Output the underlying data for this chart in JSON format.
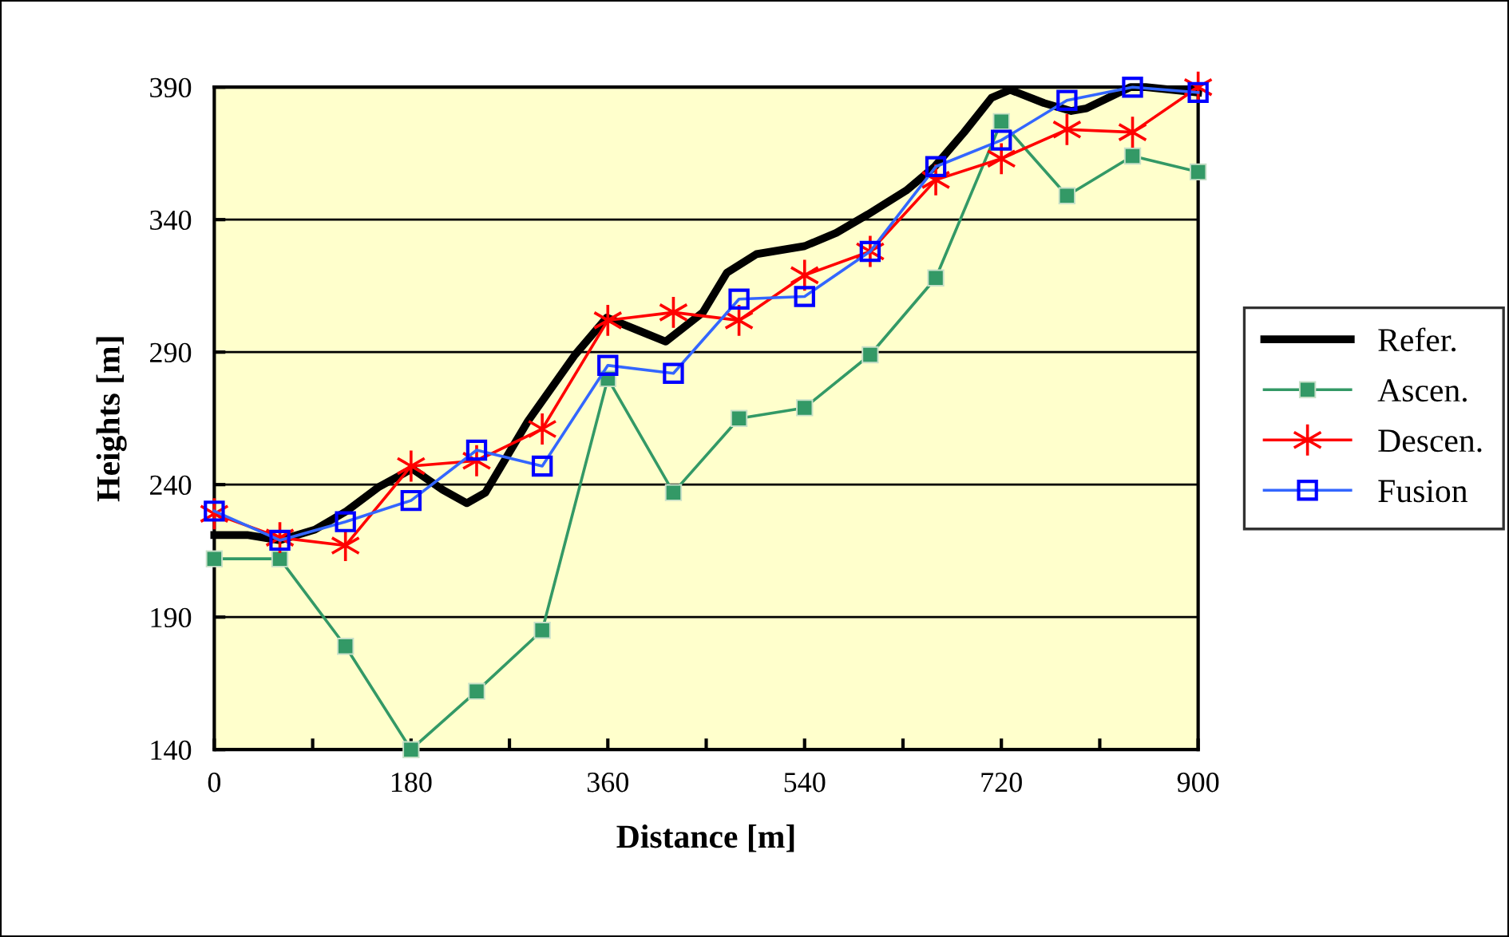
{
  "chart_data": {
    "type": "line",
    "xlabel": "Distance [m]",
    "ylabel": "Heights [m]",
    "xlim": [
      0,
      900
    ],
    "xticks": [
      0,
      {
        "value": 90,
        "label": null
      },
      180,
      {
        "value": 270,
        "label": null
      },
      360,
      {
        "value": 450,
        "label": null
      },
      540,
      {
        "value": 630,
        "label": null
      },
      720,
      {
        "value": 810,
        "label": null
      },
      900
    ],
    "ylim": [
      140,
      390
    ],
    "yticks": [
      140,
      190,
      240,
      290,
      340,
      390
    ],
    "grid": "y",
    "legend": "right",
    "series": [
      {
        "name": "Refer.",
        "color": "#000000",
        "marker": "none",
        "x": [
          0,
          30,
          60,
          92,
          121,
          150,
          181,
          209,
          231,
          248,
          287,
          330,
          359,
          389,
          413,
          447,
          469,
          496,
          540,
          569,
          598,
          633,
          659,
          686,
          711,
          728,
          759,
          784,
          798,
          838,
          852,
          900
        ],
        "values": [
          221,
          221,
          219,
          223,
          230,
          239,
          246,
          238,
          233,
          237,
          264,
          289,
          303,
          298,
          294,
          305,
          320,
          327,
          330,
          335,
          342,
          351,
          360,
          373,
          386,
          389,
          384,
          381,
          382,
          390,
          390,
          388
        ]
      },
      {
        "name": "Ascen.",
        "color": "#339966",
        "marker": "square",
        "x": [
          0,
          60,
          120,
          180,
          240,
          300,
          360,
          420,
          480,
          540,
          600,
          660,
          720,
          780,
          840,
          900
        ],
        "values": [
          212,
          212,
          179,
          140,
          162,
          185,
          280,
          237,
          265,
          269,
          289,
          318,
          377,
          349,
          364,
          358
        ]
      },
      {
        "name": "Descen.",
        "color": "#ff0000",
        "marker": "cross",
        "x": [
          0,
          60,
          120,
          180,
          240,
          300,
          360,
          420,
          480,
          540,
          600,
          660,
          720,
          780,
          840,
          900
        ],
        "values": [
          229,
          220,
          217,
          247,
          249,
          261,
          302,
          305,
          302,
          319,
          328,
          355,
          363,
          374,
          373,
          390
        ]
      },
      {
        "name": "Fusion",
        "color": "#3366ff",
        "marker": "square",
        "x": [
          0,
          60,
          120,
          180,
          240,
          300,
          360,
          420,
          480,
          540,
          600,
          660,
          720,
          780,
          840,
          900
        ],
        "values": [
          230,
          219,
          226,
          234,
          253,
          247,
          285,
          282,
          310,
          311,
          328,
          360,
          370,
          385,
          390,
          388
        ]
      }
    ]
  }
}
